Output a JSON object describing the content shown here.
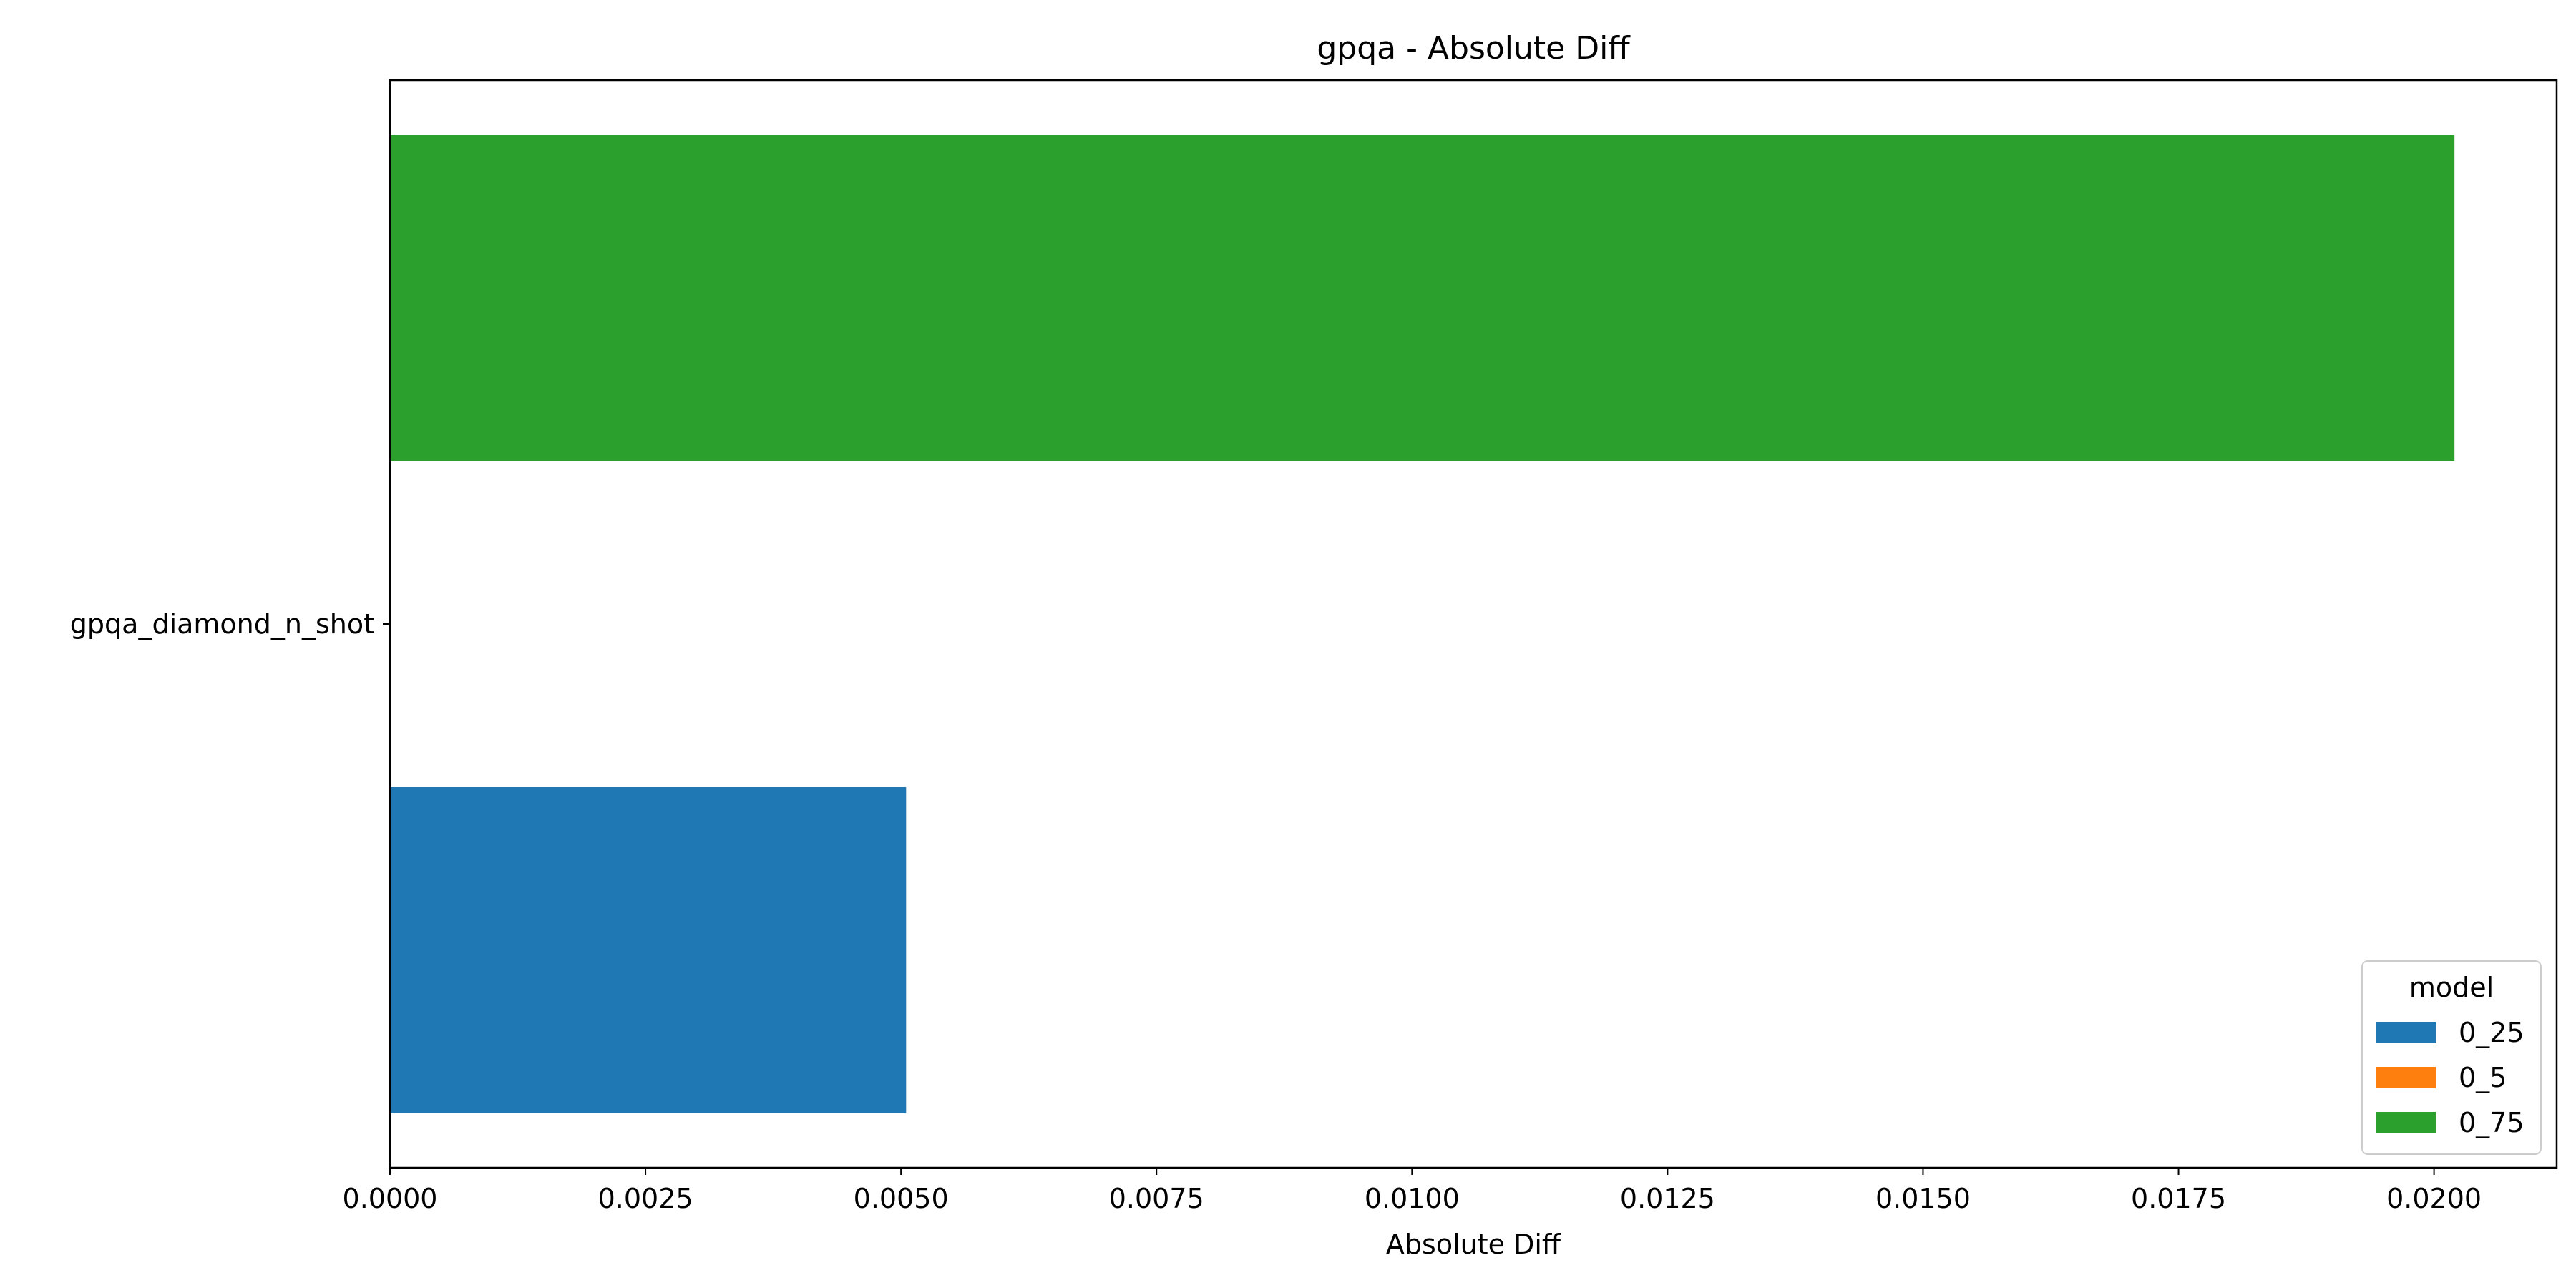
{
  "chart_data": {
    "type": "bar",
    "orientation": "horizontal",
    "title": "gpqa - Absolute Diff",
    "xlabel": "Absolute Diff",
    "ylabel": "",
    "categories": [
      "gpqa_diamond_n_shot"
    ],
    "xlim": [
      0,
      0.0212
    ],
    "xticks": [
      0.0,
      0.0025,
      0.005,
      0.0075,
      0.01,
      0.0125,
      0.015,
      0.0175,
      0.02
    ],
    "xtick_labels": [
      "0.0000",
      "0.0025",
      "0.0050",
      "0.0075",
      "0.0100",
      "0.0125",
      "0.0150",
      "0.0175",
      "0.0200"
    ],
    "grid": false,
    "legend": {
      "title": "model",
      "placement": "bottom-right"
    },
    "series": [
      {
        "name": "0_25",
        "color": "#1f77b4",
        "values": [
          0.00505
        ]
      },
      {
        "name": "0_5",
        "color": "#ff7f0e",
        "values": [
          0.0
        ]
      },
      {
        "name": "0_75",
        "color": "#2ca02c",
        "values": [
          0.0202
        ]
      }
    ]
  }
}
